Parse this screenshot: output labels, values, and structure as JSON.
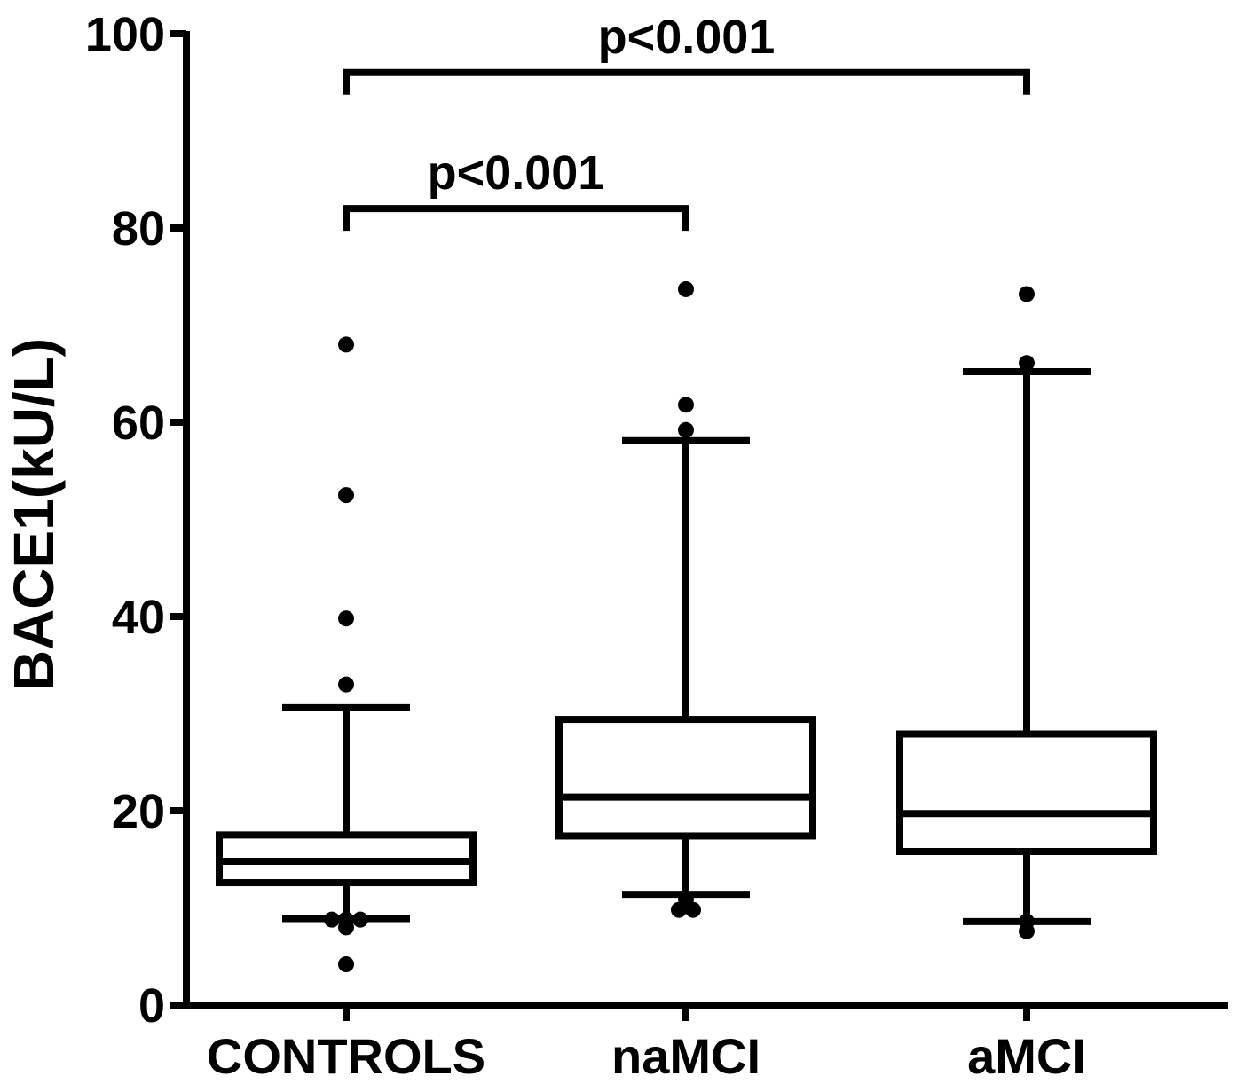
{
  "chart_data": {
    "type": "box",
    "ylabel": "BACE1(kU/L)",
    "xlabel": "",
    "ylim": [
      0,
      100
    ],
    "yticks": [
      0,
      20,
      40,
      60,
      80,
      100
    ],
    "categories": [
      "CONTROLS",
      "naMCI",
      "aMCI"
    ],
    "boxes": [
      {
        "category": "CONTROLS",
        "whisker_low": 8.9,
        "q1": 12.6,
        "median": 14.8,
        "q3": 17.5,
        "whisker_high": 30.6,
        "outliers": [
          68.0,
          52.5,
          39.8,
          33.0,
          8.8,
          8.8,
          8.8,
          8.0,
          4.2
        ]
      },
      {
        "category": "naMCI",
        "whisker_low": 11.4,
        "q1": 17.4,
        "median": 21.4,
        "q3": 29.4,
        "whisker_high": 58.1,
        "outliers": [
          73.7,
          61.8,
          59.2,
          10.9,
          9.8,
          9.8
        ]
      },
      {
        "category": "aMCI",
        "whisker_low": 8.6,
        "q1": 15.8,
        "median": 19.7,
        "q3": 27.9,
        "whisker_high": 65.2,
        "outliers": [
          73.2,
          66.1,
          8.6,
          7.6
        ]
      }
    ],
    "annotations": [
      {
        "from": "CONTROLS",
        "to": "naMCI",
        "text": "p<0.001",
        "bracket_y": 82
      },
      {
        "from": "CONTROLS",
        "to": "aMCI",
        "text": "p<0.001",
        "bracket_y": 96
      }
    ]
  }
}
